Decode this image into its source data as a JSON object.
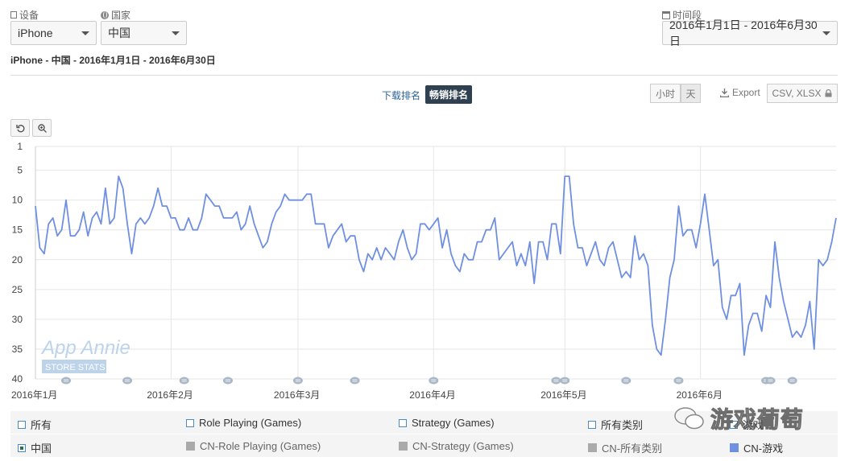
{
  "filters": {
    "device_label": "设备",
    "device_value": "iPhone",
    "country_label": "国家",
    "country_value": "中国",
    "period_label": "时间段",
    "period_value": "2016年1月1日 - 2016年6月30日"
  },
  "summary_title": "iPhone - 中国 - 2016年1月1日 - 2016年6月30日",
  "rank_tabs": {
    "downloads": "下载排名",
    "grossing": "畅销排名"
  },
  "granularity": {
    "hour": "小时",
    "day": "天"
  },
  "export": {
    "label": "Export",
    "formats": "CSV, XLSX"
  },
  "watermark": {
    "brand": "App Annie",
    "sub": "STORE STATS"
  },
  "wechat_watermark": "游戏葡萄",
  "colors": {
    "line": "#6f8fe0",
    "grid": "#e6e6e6",
    "accent_dark": "#2f4050",
    "gray_swatch": "#aaaaaa"
  },
  "legend": {
    "row1": [
      {
        "label": "所有",
        "checked": false
      },
      {
        "label": "Role Playing (Games)",
        "checked": false
      },
      {
        "label": "Strategy (Games)",
        "checked": false
      },
      {
        "label": "所有类别",
        "checked": false
      },
      {
        "label": "游戏",
        "checked": false
      }
    ],
    "row2": [
      {
        "label": "中国",
        "checked": true
      },
      {
        "label": "CN-Role Playing (Games)",
        "color": "#aaaaaa"
      },
      {
        "label": "CN-Strategy (Games)",
        "color": "#aaaaaa"
      },
      {
        "label": "CN-所有类别",
        "color": "#aaaaaa"
      },
      {
        "label": "CN-游戏",
        "color": "#6f8fe0"
      }
    ]
  },
  "chart_data": {
    "type": "line",
    "title": "",
    "xlabel": "",
    "ylabel": "",
    "y_reversed": true,
    "ylim": [
      1,
      40
    ],
    "yticks": [
      1,
      5,
      10,
      15,
      20,
      25,
      30,
      35,
      40
    ],
    "xticks": [
      "2016年1月",
      "2016年2月",
      "2016年3月",
      "2016年4月",
      "2016年5月",
      "2016年6月"
    ],
    "grid": true,
    "legend_position": "bottom",
    "series": [
      {
        "name": "CN-游戏",
        "x_start": "2016-01-01",
        "values": [
          11,
          18,
          19,
          14,
          13,
          16,
          15,
          10,
          16,
          16,
          15,
          12,
          16,
          13,
          12,
          14,
          8,
          14,
          13,
          6,
          8,
          14,
          19,
          14,
          13,
          14,
          13,
          11,
          8,
          11,
          11,
          13,
          13,
          15,
          15,
          13,
          15,
          15,
          13,
          9,
          10,
          11,
          11,
          13,
          13,
          13,
          12,
          15,
          14,
          11,
          14,
          16,
          18,
          17,
          14,
          12,
          11,
          9,
          10,
          10,
          10,
          10,
          9,
          9,
          14,
          14,
          14,
          18,
          16,
          15,
          14,
          17,
          16,
          16,
          20,
          22,
          19,
          20,
          18,
          20,
          18,
          19,
          20,
          17,
          15,
          18,
          20,
          19,
          14,
          14,
          15,
          14,
          13,
          18,
          15,
          19,
          21,
          22,
          19,
          20,
          20,
          17,
          17,
          15,
          15,
          13,
          20,
          19,
          18,
          17,
          21,
          19,
          21,
          17,
          24,
          17,
          17,
          20,
          14,
          14,
          19,
          6,
          6,
          14,
          18,
          18,
          21,
          19,
          17,
          20,
          21,
          18,
          17,
          20,
          23,
          22,
          23,
          16,
          20,
          19,
          21,
          31,
          35,
          36,
          30,
          23,
          20,
          11,
          16,
          15,
          15,
          18,
          14,
          9,
          15,
          21,
          20,
          28,
          30,
          26,
          26,
          24,
          36,
          31,
          29,
          29,
          32,
          26,
          28,
          17,
          23,
          27,
          30,
          33,
          32,
          33,
          31,
          27,
          35,
          20,
          21,
          20,
          17,
          13
        ]
      }
    ],
    "annotation_markers_dates": [
      "2016-01-08",
      "2016-01-22",
      "2016-02-04",
      "2016-02-14",
      "2016-03-01",
      "2016-03-14",
      "2016-04-01",
      "2016-04-29",
      "2016-05-01",
      "2016-05-15",
      "2016-05-27",
      "2016-06-16",
      "2016-06-17",
      "2016-06-22"
    ]
  }
}
